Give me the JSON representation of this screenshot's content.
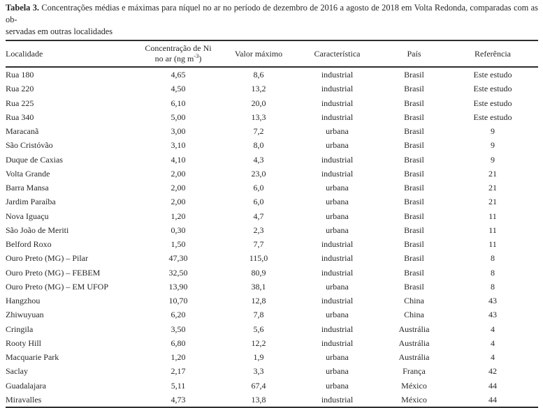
{
  "caption": {
    "label": "Tabela 3.",
    "line1": "Concentrações médias e máximas para níquel no ar no período de dezembro de 2016 a agosto de 2018 em Volta Redonda, comparadas com as ob-",
    "line2": "servadas em outras localidades"
  },
  "table": {
    "headers": {
      "localidade": "Localidade",
      "concentracao_line1": "Concentração de Ni",
      "concentracao_line2_pre": "no ar (ng m",
      "concentracao_sup": "-3",
      "concentracao_line2_post": ")",
      "valor_maximo": "Valor máximo",
      "caracteristica": "Característica",
      "pais": "País",
      "referencia": "Referência"
    },
    "rows": [
      [
        "Rua 180",
        "4,65",
        "8,6",
        "industrial",
        "Brasil",
        "Este estudo"
      ],
      [
        "Rua 220",
        "4,50",
        "13,2",
        "industrial",
        "Brasil",
        "Este estudo"
      ],
      [
        "Rua 225",
        "6,10",
        "20,0",
        "industrial",
        "Brasil",
        "Este estudo"
      ],
      [
        "Rua 340",
        "5,00",
        "13,3",
        "industrial",
        "Brasil",
        "Este estudo"
      ],
      [
        "Maracanã",
        "3,00",
        "7,2",
        "urbana",
        "Brasil",
        "9"
      ],
      [
        "São Cristóvão",
        "3,10",
        "8,0",
        "urbana",
        "Brasil",
        "9"
      ],
      [
        "Duque de Caxias",
        "4,10",
        "4,3",
        "industrial",
        "Brasil",
        "9"
      ],
      [
        "Volta Grande",
        "2,00",
        "23,0",
        "industrial",
        "Brasil",
        "21"
      ],
      [
        "Barra Mansa",
        "2,00",
        "6,0",
        "urbana",
        "Brasil",
        "21"
      ],
      [
        "Jardim Paraíba",
        "2,00",
        "6,0",
        "urbana",
        "Brasil",
        "21"
      ],
      [
        "Nova Iguaçu",
        "1,20",
        "4,7",
        "urbana",
        "Brasil",
        "11"
      ],
      [
        "São João de Meriti",
        "0,30",
        "2,3",
        "urbana",
        "Brasil",
        "11"
      ],
      [
        "Belford Roxo",
        "1,50",
        "7,7",
        "industrial",
        "Brasil",
        "11"
      ],
      [
        "Ouro Preto (MG) – Pilar",
        "47,30",
        "115,0",
        "industrial",
        "Brasil",
        "8"
      ],
      [
        "Ouro Preto (MG) – FEBEM",
        "32,50",
        "80,9",
        "industrial",
        "Brasil",
        "8"
      ],
      [
        "Ouro Preto (MG) – EM UFOP",
        "13,90",
        "38,1",
        "urbana",
        "Brasil",
        "8"
      ],
      [
        "Hangzhou",
        "10,70",
        "12,8",
        "industrial",
        "China",
        "43"
      ],
      [
        "Zhiwuyuan",
        "6,20",
        "7,8",
        "urbana",
        "China",
        "43"
      ],
      [
        "Cringila",
        "3,50",
        "5,6",
        "industrial",
        "Austrália",
        "4"
      ],
      [
        "Rooty Hill",
        "6,80",
        "12,2",
        "industrial",
        "Austrália",
        "4"
      ],
      [
        "Macquarie Park",
        "1,20",
        "1,9",
        "urbana",
        "Austrália",
        "4"
      ],
      [
        "Saclay",
        "2,17",
        "3,3",
        "urbana",
        "França",
        "42"
      ],
      [
        "Guadalajara",
        "5,11",
        "67,4",
        "urbana",
        "México",
        "44"
      ],
      [
        "Miravalles",
        "4,73",
        "13,8",
        "industrial",
        "México",
        "44"
      ]
    ]
  }
}
